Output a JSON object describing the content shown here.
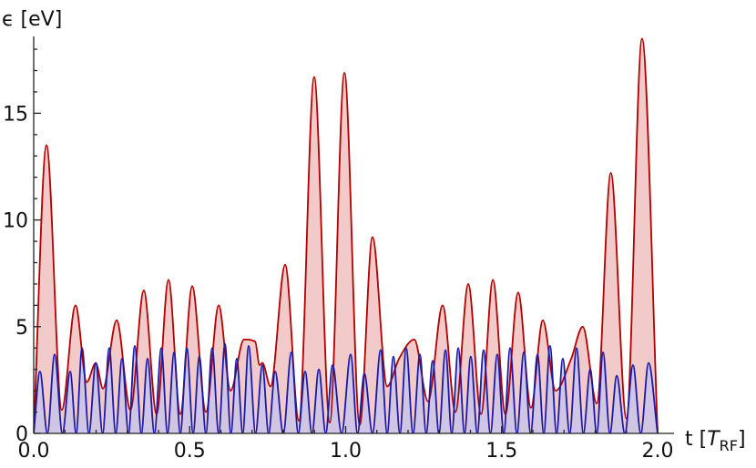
{
  "chart_data": {
    "type": "area",
    "y_label": "ϵ [eV]",
    "x_label": {
      "prefix": "t [",
      "symbol": "T",
      "subscript": "RF",
      "suffix": "]"
    },
    "xlim": [
      0,
      2.0
    ],
    "ylim": [
      0,
      18.6
    ],
    "xticks": [
      {
        "value": 0,
        "label": "0.0"
      },
      {
        "value": 0.5,
        "label": "0.5"
      },
      {
        "value": 1,
        "label": "1.0"
      },
      {
        "value": 1.5,
        "label": "1.5"
      },
      {
        "value": 2,
        "label": "2.0"
      }
    ],
    "xminorticks": [
      0.1,
      0.2,
      0.3,
      0.4,
      0.6,
      0.7,
      0.8,
      0.9,
      1.1,
      1.2,
      1.3,
      1.4,
      1.6,
      1.7,
      1.8,
      1.9
    ],
    "yticks": [
      0,
      5,
      10,
      15
    ],
    "yminorticks": [
      1,
      2,
      3,
      4,
      6,
      7,
      8,
      9,
      11,
      12,
      13,
      14,
      16,
      17,
      18
    ],
    "series": [
      {
        "color": "#b30000",
        "fill": "#f2caca",
        "x": [
          0,
          0.041,
          0.09,
          0.134,
          0.17,
          0.199,
          0.222,
          0.266,
          0.31,
          0.353,
          0.394,
          0.432,
          0.47,
          0.508,
          0.552,
          0.593,
          0.631,
          0.674,
          0.71,
          0.724,
          0.733,
          0.759,
          0.806,
          0.85,
          0.899,
          0.949,
          0.996,
          1.045,
          1.086,
          1.133,
          1.171,
          1.22,
          1.264,
          1.311,
          1.352,
          1.393,
          1.434,
          1.472,
          1.512,
          1.553,
          1.594,
          1.632,
          1.673,
          1.723,
          1.76,
          1.805,
          1.85,
          1.9,
          1.95,
          2.0
        ],
        "values": [
          0,
          13.5,
          1.1,
          6.0,
          2.4,
          3.3,
          2.1,
          5.3,
          1.1,
          6.7,
          0.9,
          7.2,
          0.9,
          6.9,
          1.0,
          6.0,
          2.0,
          4.4,
          4.3,
          3.2,
          3.3,
          2.2,
          7.9,
          0.6,
          16.7,
          0.5,
          16.9,
          0.4,
          9.2,
          2.2,
          3.5,
          4.4,
          1.5,
          6.0,
          1.0,
          7.0,
          0.9,
          7.2,
          0.9,
          6.6,
          1.2,
          5.3,
          2.0,
          3.5,
          5.0,
          1.4,
          12.2,
          0.7,
          18.5,
          0
        ]
      },
      {
        "color": "#1a1aa8",
        "fill": "#c4c4ec",
        "x": [
          0,
          0.02,
          0.044,
          0.067,
          0.092,
          0.117,
          0.136,
          0.155,
          0.177,
          0.199,
          0.221,
          0.242,
          0.263,
          0.283,
          0.304,
          0.324,
          0.345,
          0.365,
          0.387,
          0.409,
          0.429,
          0.45,
          0.47,
          0.491,
          0.511,
          0.531,
          0.552,
          0.572,
          0.593,
          0.613,
          0.632,
          0.651,
          0.67,
          0.689,
          0.711,
          0.733,
          0.753,
          0.774,
          0.8,
          0.826,
          0.848,
          0.87,
          0.892,
          0.914,
          0.936,
          0.958,
          0.987,
          1.016,
          1.038,
          1.06,
          1.086,
          1.112,
          1.133,
          1.153,
          1.174,
          1.194,
          1.216,
          1.238,
          1.258,
          1.279,
          1.299,
          1.32,
          1.34,
          1.361,
          1.381,
          1.401,
          1.422,
          1.442,
          1.464,
          1.486,
          1.507,
          1.527,
          1.549,
          1.571,
          1.593,
          1.615,
          1.635,
          1.655,
          1.676,
          1.696,
          1.718,
          1.74,
          1.762,
          1.784,
          1.805,
          1.825,
          1.847,
          1.869,
          1.895,
          1.921,
          1.946,
          1.971,
          2.0
        ],
        "values": [
          0,
          2.9,
          0,
          3.7,
          0,
          2.9,
          0,
          4.0,
          0,
          3.3,
          0,
          4.0,
          0,
          3.5,
          0,
          4.1,
          0,
          3.5,
          0,
          4.0,
          0,
          3.8,
          0,
          4.0,
          0,
          3.6,
          0,
          4.0,
          0,
          4.2,
          0,
          3.5,
          0,
          4.1,
          0,
          3.2,
          0,
          2.9,
          0,
          3.8,
          0,
          2.9,
          0,
          3.0,
          0,
          3.2,
          0,
          3.7,
          0,
          2.8,
          0,
          3.9,
          0,
          3.6,
          0,
          4.0,
          0,
          3.7,
          0,
          3.4,
          0,
          3.9,
          0,
          4.0,
          0,
          3.6,
          0,
          3.9,
          0,
          3.7,
          0,
          4.0,
          0,
          3.8,
          0,
          3.7,
          0,
          4.1,
          0,
          3.5,
          0,
          4.0,
          0,
          3.0,
          0,
          3.8,
          0,
          2.7,
          0,
          3.2,
          0,
          3.3,
          0
        ]
      }
    ]
  }
}
